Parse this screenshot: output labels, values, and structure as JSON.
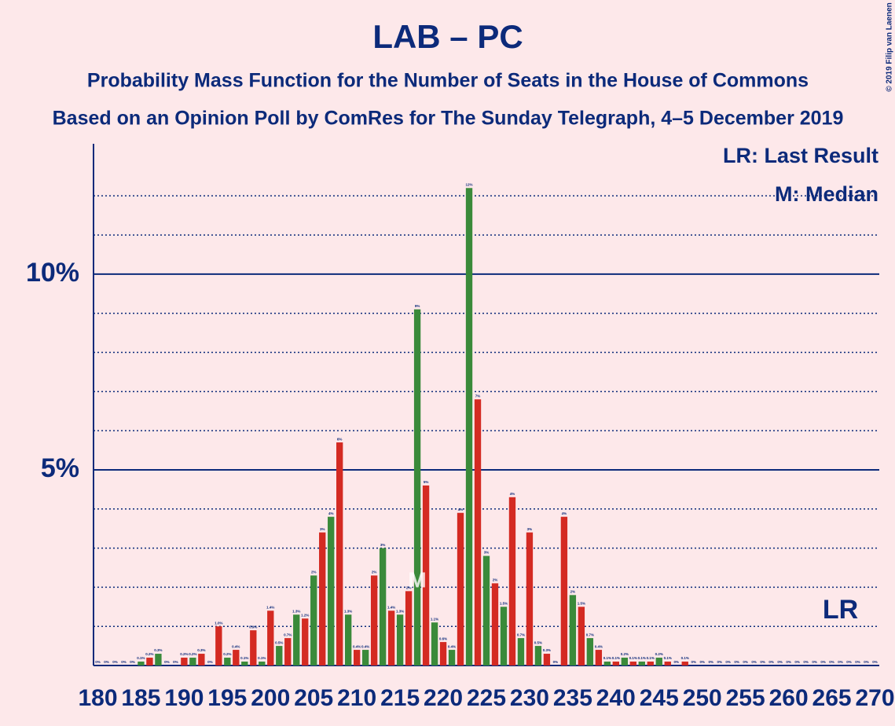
{
  "chart_data": {
    "type": "bar",
    "title": "LAB – PC",
    "subtitle": "Probability Mass Function for the Number of Seats in the House of Commons",
    "subtitle2": "Based on an Opinion Poll by ComRes for The Sunday Telegraph, 4–5 December 2019",
    "copyright": "© 2019 Filip van Laenen",
    "legend": [
      "LR: Last Result",
      "M: Median"
    ],
    "last_result": {
      "x": 266,
      "label": "LR"
    },
    "median": {
      "x": 217,
      "label": "M"
    },
    "colors": [
      "#d42a22",
      "#3a8a3a"
    ],
    "x": [
      180,
      181,
      182,
      183,
      184,
      185,
      186,
      187,
      188,
      189,
      190,
      191,
      192,
      193,
      194,
      195,
      196,
      197,
      198,
      199,
      200,
      201,
      202,
      203,
      204,
      205,
      206,
      207,
      208,
      209,
      210,
      211,
      212,
      213,
      214,
      215,
      216,
      217,
      218,
      219,
      220,
      221,
      222,
      223,
      224,
      225,
      226,
      227,
      228,
      229,
      230,
      231,
      232,
      233,
      234,
      235,
      236,
      237,
      238,
      239,
      240,
      241,
      242,
      243,
      244,
      245,
      246,
      247,
      248,
      249,
      250,
      251,
      252,
      253,
      254,
      255,
      256,
      257,
      258,
      259,
      260,
      261,
      262,
      263,
      264,
      265,
      266,
      267,
      268,
      269,
      270
    ],
    "values": [
      0,
      0,
      0,
      0,
      0,
      0.1,
      0.2,
      0.3,
      0,
      0,
      0.2,
      0.2,
      0.3,
      0,
      1.0,
      0.2,
      0.4,
      0.1,
      0.9,
      0.1,
      1.4,
      0.5,
      0.7,
      1.3,
      1.2,
      2.3,
      3.4,
      3.8,
      5.7,
      1.3,
      0.4,
      0.4,
      2.3,
      3.0,
      1.4,
      1.3,
      1.9,
      9.1,
      4.6,
      1.1,
      0.6,
      0.4,
      3.9,
      12.2,
      6.8,
      2.8,
      2.1,
      1.5,
      4.3,
      0.7,
      3.4,
      0.5,
      0.3,
      0,
      3.8,
      1.8,
      1.5,
      0.7,
      0.4,
      0.1,
      0.1,
      0.2,
      0.1,
      0.1,
      0.1,
      0.2,
      0.1,
      0,
      0.1,
      0,
      0,
      0,
      0,
      0,
      0,
      0,
      0,
      0,
      0,
      0,
      0,
      0,
      0,
      0,
      0,
      0,
      0,
      0,
      0,
      0,
      0
    ],
    "value_labels": [
      "0%",
      "0%",
      "0%",
      "0%",
      "0%",
      "0.1%",
      "0.2%",
      "0.3%",
      "0%",
      "0%",
      "0.2%",
      "0.2%",
      "0.3%",
      "0%",
      "1.0%",
      "0.2%",
      "0.4%",
      "0.1%",
      "0.9%",
      "0.1%",
      "1.4%",
      "0.5%",
      "0.7%",
      "1.3%",
      "1.2%",
      "2%",
      "3%",
      "4%",
      "6%",
      "1.3%",
      "0.4%",
      "0.4%",
      "2%",
      "3%",
      "1.4%",
      "1.3%",
      "2%",
      "9%",
      "5%",
      "1.1%",
      "0.6%",
      "0.4%",
      "4%",
      "12%",
      "7%",
      "3%",
      "2%",
      "1.5%",
      "4%",
      "0.7%",
      "3%",
      "0.5%",
      "0.3%",
      "0%",
      "4%",
      "2%",
      "1.5%",
      "0.7%",
      "0.4%",
      "0.1%",
      "0.1%",
      "0.2%",
      "0.1%",
      "0.1%",
      "0.1%",
      "0.2%",
      "0.1%",
      "0%",
      "0.1%",
      "0%",
      "0%",
      "0%",
      "0%",
      "0%",
      "0%",
      "0%",
      "0%",
      "0%",
      "0%",
      "0%",
      "0%",
      "0%",
      "0%",
      "0%",
      "0%",
      "0%",
      "0%",
      "0%",
      "0%",
      "0%",
      "0%"
    ],
    "xlim": [
      179.5,
      270.5
    ],
    "xticks": [
      180,
      185,
      190,
      195,
      200,
      205,
      210,
      215,
      220,
      225,
      230,
      235,
      240,
      245,
      250,
      255,
      260,
      265,
      270
    ],
    "ylim": [
      0,
      13.33
    ],
    "yticks": [
      {
        "value": 5,
        "label": "5%"
      },
      {
        "value": 10,
        "label": "10%"
      }
    ],
    "minor_yticks": [
      1,
      2,
      3,
      4,
      6,
      7,
      8,
      9,
      11,
      12
    ],
    "grid": true
  }
}
